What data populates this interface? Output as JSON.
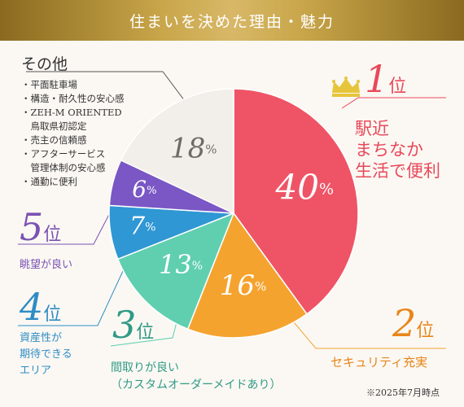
{
  "header": {
    "title": "住まいを決めた理由・魅力"
  },
  "rank_suffix": "位",
  "ranks": [
    {
      "num": "1",
      "label_lines": [
        "駅近",
        "まちなか",
        "生活で便利"
      ],
      "color": "#e8495a"
    },
    {
      "num": "2",
      "label_lines": [
        "セキュリティ充実"
      ],
      "color": "#f5a32f"
    },
    {
      "num": "3",
      "label_lines": [
        "間取りが良い",
        "（カスタムオーダーメイドあり）"
      ],
      "color": "#5fcfb0"
    },
    {
      "num": "4",
      "label_lines": [
        "資産性が",
        "期待できる",
        "エリア"
      ],
      "color": "#2e8cc4"
    },
    {
      "num": "5",
      "label_lines": [
        "眺望が良い"
      ],
      "color": "#7a52b3"
    }
  ],
  "other": {
    "title": "その他",
    "items": [
      "・平面駐車場",
      "・構造・耐久性の安心感",
      "・ZEH-M ORIENTED",
      "　鳥取県初認定",
      "・売主の信頼感",
      "・アフターサービス",
      "　管理体制の安心感",
      "・通勤に便利"
    ]
  },
  "note": "※2025年7月時点",
  "icons": {
    "crown": "crown-icon"
  },
  "chart_data": {
    "type": "pie",
    "title": "住まいを決めた理由・魅力",
    "categories": [
      "駅近 まちなか 生活で便利",
      "セキュリティ充実",
      "間取りが良い（カスタムオーダーメイドあり）",
      "資産性が期待できるエリア",
      "眺望が良い",
      "その他"
    ],
    "values": [
      40,
      16,
      13,
      7,
      6,
      18
    ],
    "value_labels": [
      "40",
      "16",
      "13",
      "7",
      "6",
      "18"
    ],
    "unit": "%",
    "colors": [
      "#ef5466",
      "#f5a32f",
      "#5fcfb0",
      "#2f97d3",
      "#7a57c4",
      "#f2efea"
    ],
    "start_angle_deg": 0,
    "direction": "clockwise"
  }
}
